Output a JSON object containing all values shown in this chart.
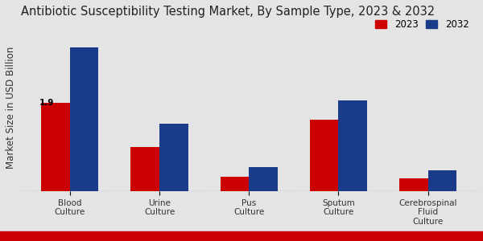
{
  "title": "Antibiotic Susceptibility Testing Market, By Sample Type, 2023 & 2032",
  "ylabel": "Market Size in USD Billion",
  "categories": [
    "Blood\nCulture",
    "Urine\nCulture",
    "Pus\nCulture",
    "Sputum\nCulture",
    "Cerebrospinal\nFluid\nCulture"
  ],
  "values_2023": [
    1.9,
    0.95,
    0.32,
    1.55,
    0.28
  ],
  "values_2032": [
    3.1,
    1.45,
    0.52,
    1.95,
    0.45
  ],
  "color_2023": "#cc0000",
  "color_2032": "#1a3a8a",
  "annotation_text": "1.9",
  "legend_labels": [
    "2023",
    "2032"
  ],
  "bg_color": "#e4e4e4",
  "title_fontsize": 10.5,
  "axis_label_fontsize": 8.5,
  "tick_fontsize": 7.5,
  "legend_fontsize": 8.5,
  "bar_width": 0.32,
  "ylim": [
    0,
    3.6
  ]
}
